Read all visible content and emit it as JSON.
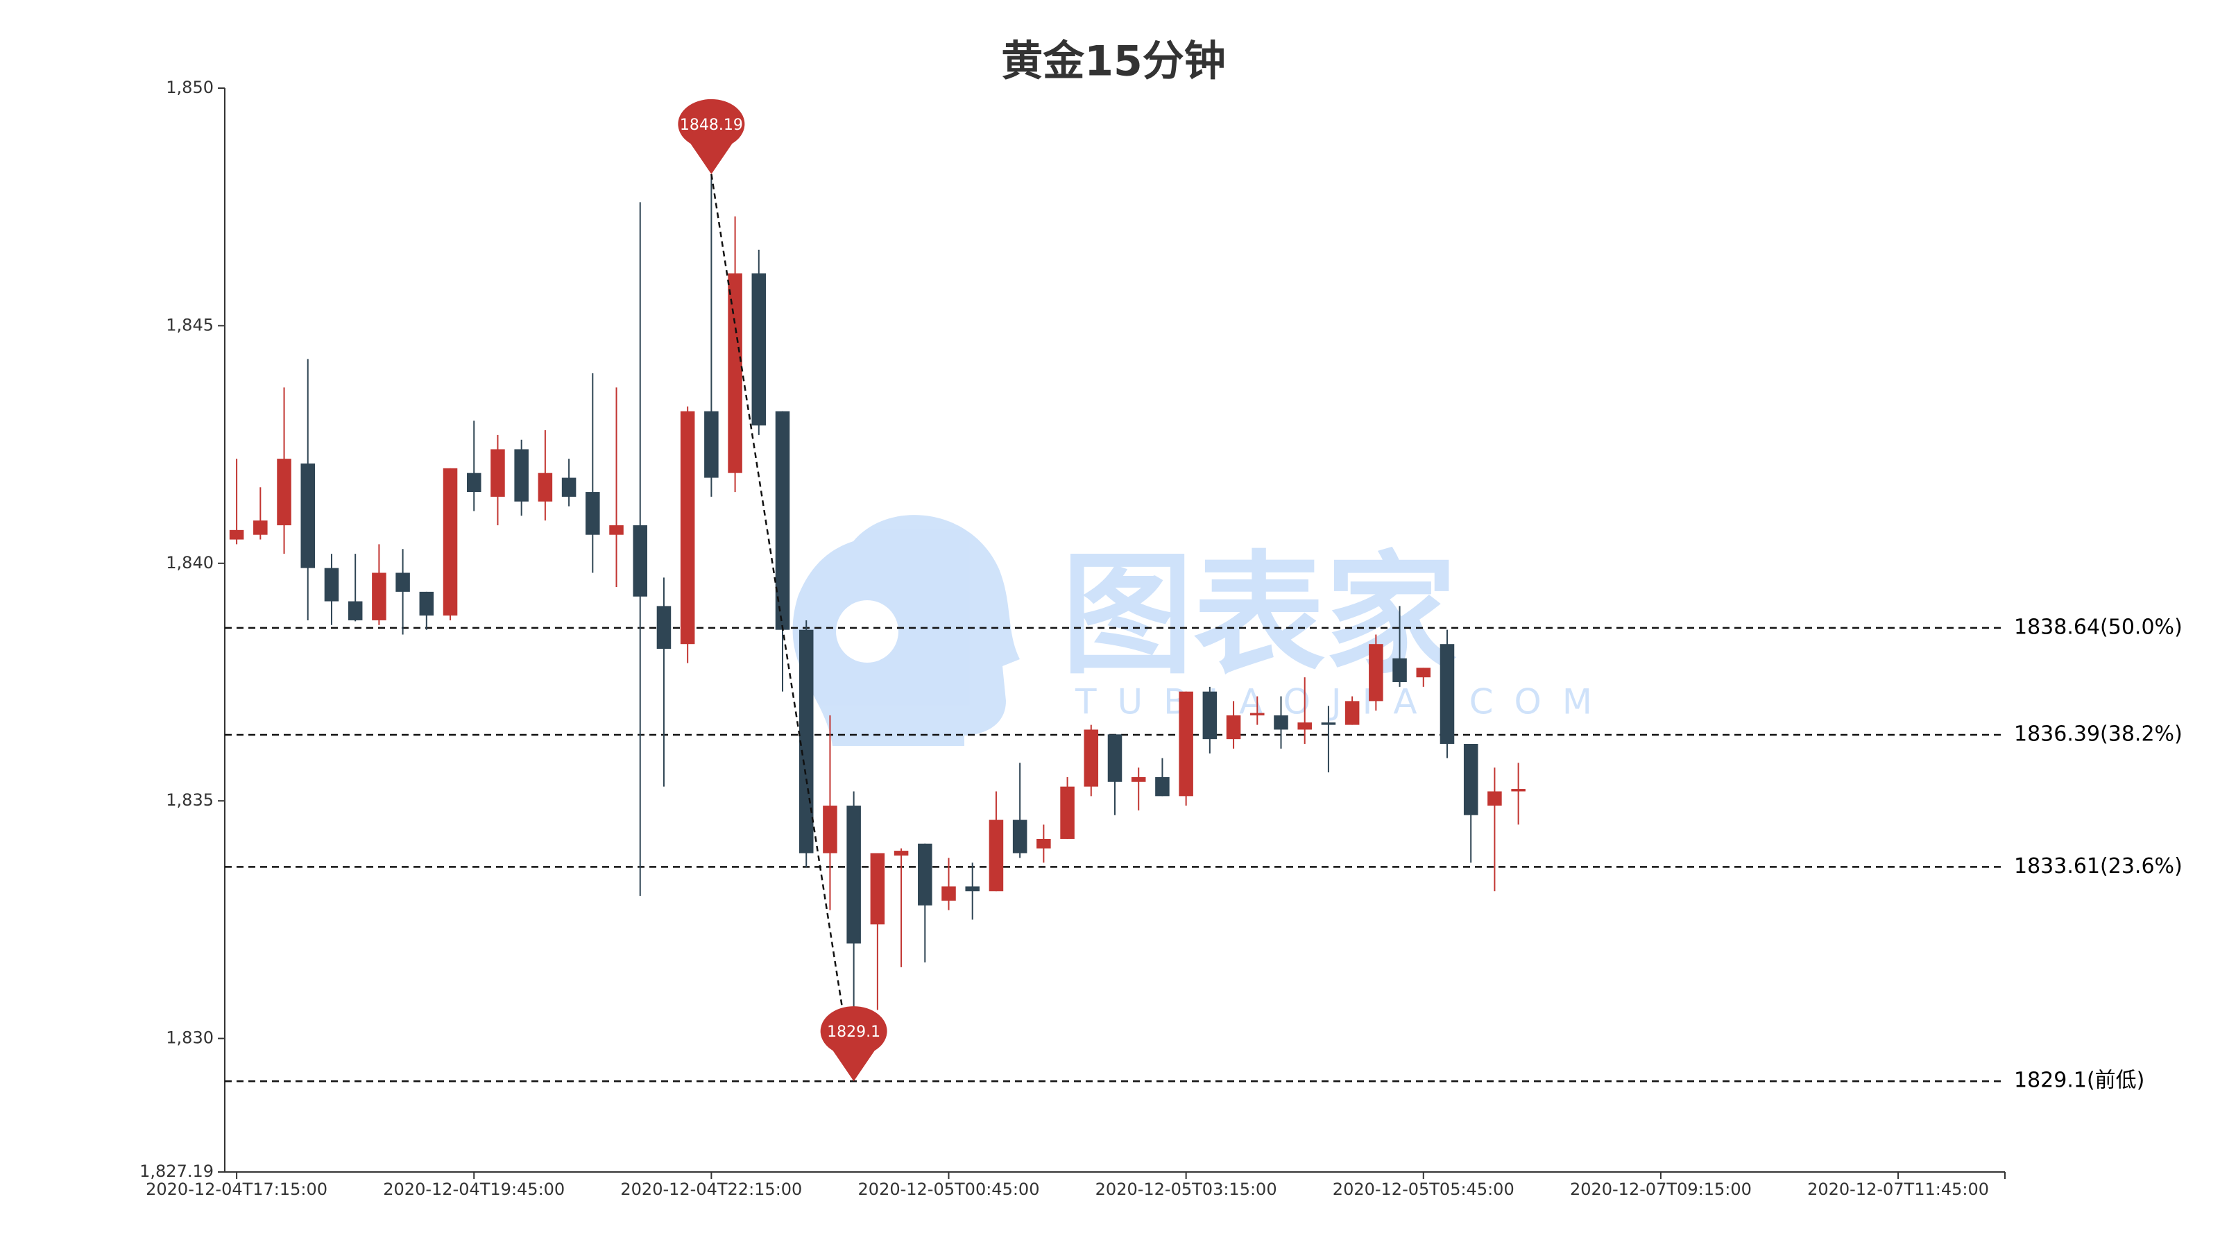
{
  "chart_data": {
    "type": "candlestick",
    "title": "黄金15分钟",
    "watermark": "图表家",
    "watermark_sub": "TUBIAOJIA.COM",
    "up_color": "#c23531",
    "down_color": "#2f4554",
    "categories": [
      "2020-12-04T17:15:00",
      null,
      null,
      null,
      null,
      null,
      null,
      null,
      null,
      null,
      "2020-12-04T19:45:00",
      null,
      null,
      null,
      null,
      null,
      null,
      null,
      null,
      null,
      "2020-12-04T22:15:00",
      null,
      null,
      null,
      null,
      null,
      null,
      null,
      null,
      null,
      "2020-12-05T00:45:00",
      null,
      null,
      null,
      null,
      null,
      null,
      null,
      null,
      null,
      "2020-12-05T03:15:00",
      null,
      null,
      null,
      null,
      null,
      null,
      null,
      null,
      null,
      "2020-12-05T05:45:00",
      null,
      null,
      null,
      null,
      null,
      null,
      null,
      null,
      null,
      "2020-12-07T09:15:00",
      null,
      null,
      null,
      null,
      null,
      null,
      null,
      null,
      null,
      "2020-12-07T11:45:00",
      null,
      null,
      null,
      null
    ],
    "open": [
      1840.5,
      1840.6,
      1840.8,
      1842.1,
      1839.9,
      1839.2,
      1838.8,
      1839.8,
      1839.4,
      1838.9,
      1841.9,
      1841.4,
      1842.4,
      1841.3,
      1841.8,
      1841.5,
      1840.6,
      1840.8,
      1839.1,
      1838.3,
      1843.2,
      1841.9,
      1846.1,
      1843.2,
      1838.6,
      1833.9,
      1834.9,
      1832.4,
      1833.85,
      1834.1,
      1832.9,
      1833.2,
      1833.1,
      1834.6,
      1834.0,
      1834.2,
      1835.3,
      1836.4,
      1835.4,
      1835.5,
      1835.1,
      1837.3,
      1836.3,
      1836.8,
      1836.8,
      1836.5,
      1836.65,
      1836.6,
      1837.1,
      1838.0,
      1837.6,
      1838.3,
      1836.2,
      1834.9,
      1835.2,
      null,
      null,
      null,
      null,
      null,
      null,
      null,
      null,
      null,
      null,
      null,
      null,
      null,
      null,
      null,
      null,
      null,
      null,
      null,
      null
    ],
    "high": [
      1842.2,
      1841.6,
      1843.7,
      1844.3,
      1840.2,
      1840.2,
      1840.4,
      1840.3,
      1839.4,
      1842.0,
      1843.0,
      1842.7,
      1842.6,
      1842.8,
      1842.2,
      1844.0,
      1843.7,
      1847.6,
      1839.7,
      1843.3,
      1848.19,
      1847.3,
      1846.6,
      1843.2,
      1838.8,
      1836.8,
      1835.2,
      1833.9,
      1834.0,
      1834.1,
      1833.8,
      1833.7,
      1835.2,
      1835.8,
      1834.5,
      1835.5,
      1836.6,
      1836.4,
      1835.7,
      1835.9,
      1837.3,
      1837.4,
      1837.1,
      1837.2,
      1837.2,
      1837.6,
      1837.0,
      1837.2,
      1838.5,
      1839.1,
      1837.8,
      1838.6,
      1836.2,
      1835.7,
      1835.8,
      null,
      null,
      null,
      null,
      null,
      null,
      null,
      null,
      null,
      null,
      null,
      null,
      null,
      null,
      null,
      null,
      null,
      null,
      null,
      null
    ],
    "low": [
      1840.4,
      1840.5,
      1840.2,
      1838.8,
      1838.7,
      1838.78,
      1838.7,
      1838.5,
      1838.6,
      1838.8,
      1841.1,
      1840.8,
      1841.0,
      1840.9,
      1841.2,
      1839.8,
      1839.5,
      1833.0,
      1835.3,
      1837.9,
      1841.4,
      1841.5,
      1842.7,
      1837.3,
      1833.6,
      1832.7,
      1829.1,
      1830.6,
      1831.5,
      1831.6,
      1832.7,
      1832.5,
      1833.1,
      1833.8,
      1833.7,
      1834.2,
      1835.1,
      1834.7,
      1834.8,
      1835.1,
      1834.9,
      1836.0,
      1836.1,
      1836.6,
      1836.1,
      1836.2,
      1835.6,
      1836.6,
      1836.9,
      1837.4,
      1837.4,
      1835.9,
      1833.7,
      1833.1,
      1834.5,
      null,
      null,
      null,
      null,
      null,
      null,
      null,
      null,
      null,
      null,
      null,
      null,
      null,
      null,
      null,
      null,
      null,
      null,
      null,
      null
    ],
    "close": [
      1840.7,
      1840.9,
      1842.2,
      1839.9,
      1839.2,
      1838.8,
      1839.8,
      1839.4,
      1838.9,
      1842.0,
      1841.5,
      1842.4,
      1841.3,
      1841.9,
      1841.4,
      1840.6,
      1840.8,
      1839.3,
      1838.2,
      1843.2,
      1841.8,
      1846.1,
      1842.9,
      1838.6,
      1833.9,
      1834.9,
      1832.0,
      1833.9,
      1833.95,
      1832.8,
      1833.2,
      1833.1,
      1834.6,
      1833.9,
      1834.2,
      1835.3,
      1836.5,
      1835.4,
      1835.5,
      1835.1,
      1837.3,
      1836.3,
      1836.8,
      1836.85,
      1836.5,
      1836.65,
      1836.6,
      1837.1,
      1838.3,
      1837.5,
      1837.8,
      1836.2,
      1834.7,
      1835.2,
      1835.25,
      null,
      null,
      null,
      null,
      null,
      null,
      null,
      null,
      null,
      null,
      null,
      null,
      null,
      null,
      null,
      null,
      null,
      null,
      null,
      null
    ],
    "ylim": [
      1827.19,
      1850
    ],
    "yticks": [
      {
        "value": 1827.19,
        "label": "1,827.19"
      },
      {
        "value": 1830,
        "label": "1,830"
      },
      {
        "value": 1835,
        "label": "1,835"
      },
      {
        "value": 1840,
        "label": "1,840"
      },
      {
        "value": 1845,
        "label": "1,845"
      },
      {
        "value": 1850,
        "label": "1,850"
      }
    ],
    "levels": [
      {
        "value": 1838.64,
        "label": "1838.64(50.0%)"
      },
      {
        "value": 1836.39,
        "label": "1836.39(38.2%)"
      },
      {
        "value": 1833.61,
        "label": "1833.61(23.6%)"
      },
      {
        "value": 1829.1,
        "label": "1829.1(前低)"
      }
    ]
  }
}
